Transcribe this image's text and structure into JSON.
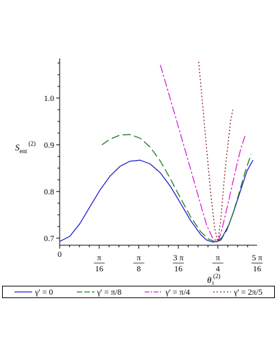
{
  "chart_data": {
    "type": "line",
    "xlabel": "θ",
    "xlabel_sub": "1",
    "xlabel_sup": "(2)",
    "ylabel": "S",
    "ylabel_sub": "ent",
    "ylabel_sup": "(2)",
    "xlim": [
      0,
      0.98
    ],
    "ylim": [
      0.685,
      1.085
    ],
    "x_ticks": [
      {
        "value": 0,
        "label": "0"
      },
      {
        "value": 0.19635,
        "num": "π",
        "den": "16"
      },
      {
        "value": 0.3927,
        "num": "π",
        "den": "8"
      },
      {
        "value": 0.58905,
        "num": "3 π",
        "den": "16"
      },
      {
        "value": 0.7854,
        "num": "π",
        "den": "4"
      },
      {
        "value": 0.98175,
        "num": "5 π",
        "den": "16"
      }
    ],
    "y_ticks": [
      {
        "value": 0.7,
        "label": "0.7"
      },
      {
        "value": 0.8,
        "label": "0.8"
      },
      {
        "value": 0.9,
        "label": "0.9"
      },
      {
        "value": 1.0,
        "label": "1.0"
      }
    ],
    "series": [
      {
        "name": "γ' = 0",
        "color": "#1f1fcc",
        "dash": "",
        "x": [
          0,
          0.05,
          0.1,
          0.15,
          0.2,
          0.25,
          0.3,
          0.35,
          0.4,
          0.45,
          0.5,
          0.55,
          0.6,
          0.65,
          0.7,
          0.73,
          0.76,
          0.785,
          0.81,
          0.84,
          0.87,
          0.9,
          0.93,
          0.96
        ],
        "y": [
          0.693,
          0.704,
          0.731,
          0.767,
          0.803,
          0.833,
          0.854,
          0.865,
          0.867,
          0.859,
          0.84,
          0.811,
          0.775,
          0.738,
          0.708,
          0.696,
          0.692,
          0.693,
          0.704,
          0.729,
          0.765,
          0.805,
          0.844,
          0.867
        ]
      },
      {
        "name": "γ' = π/8",
        "color": "#1a7a1a",
        "dash": "12,5",
        "x": [
          0.21,
          0.25,
          0.3,
          0.35,
          0.4,
          0.45,
          0.5,
          0.55,
          0.6,
          0.65,
          0.7,
          0.74,
          0.77,
          0.785,
          0.8,
          0.83,
          0.86,
          0.89,
          0.92,
          0.95
        ],
        "y": [
          0.9,
          0.912,
          0.921,
          0.922,
          0.914,
          0.895,
          0.865,
          0.827,
          0.786,
          0.746,
          0.714,
          0.698,
          0.693,
          0.693,
          0.696,
          0.717,
          0.752,
          0.796,
          0.841,
          0.88
        ]
      },
      {
        "name": "γ' = π/4",
        "color": "#d41fd4",
        "dash": "12,3,3,3",
        "x": [
          0.5,
          0.54,
          0.58,
          0.62,
          0.66,
          0.7,
          0.73,
          0.76,
          0.785,
          0.8,
          0.82,
          0.84,
          0.86,
          0.88,
          0.9,
          0.92
        ],
        "y": [
          1.071,
          1.012,
          0.953,
          0.893,
          0.833,
          0.772,
          0.728,
          0.7,
          0.693,
          0.71,
          0.745,
          0.782,
          0.82,
          0.858,
          0.893,
          0.919
        ]
      },
      {
        "name": "γ' = 2π/5",
        "color": "#8b1a1a",
        "dash": "2,3",
        "x": [
          0.69,
          0.71,
          0.73,
          0.75,
          0.77,
          0.785,
          0.8,
          0.81,
          0.82,
          0.83,
          0.84,
          0.85,
          0.86
        ],
        "y": [
          1.078,
          0.984,
          0.89,
          0.796,
          0.72,
          0.693,
          0.74,
          0.79,
          0.84,
          0.88,
          0.92,
          0.955,
          0.975
        ]
      }
    ]
  }
}
